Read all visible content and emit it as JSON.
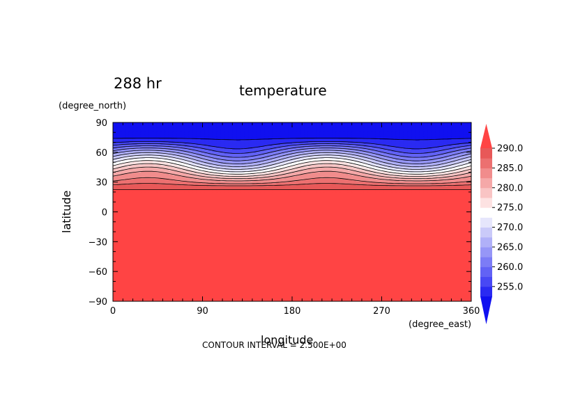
{
  "chart_data": {
    "type": "contour",
    "title": "temperature",
    "time_label": "288 hr",
    "xlabel": "longitude",
    "ylabel": "latitude",
    "x_unit": "(degree_east)",
    "y_unit": "(degree_north)",
    "xlim": [
      0,
      360
    ],
    "ylim": [
      -90,
      90
    ],
    "x_ticks": [
      "0",
      "90",
      "180",
      "270",
      "360"
    ],
    "y_ticks": [
      "90",
      "60",
      "30",
      "0",
      "−30",
      "−60",
      "−90"
    ],
    "x_tick_values": [
      0,
      90,
      180,
      270,
      360
    ],
    "y_tick_values": [
      90,
      60,
      30,
      0,
      -30,
      -60,
      -90
    ],
    "contour_interval_text": "CONTOUR INTERVAL = 2.500E+00",
    "colorbar": {
      "labels": [
        "290.0",
        "285.0",
        "280.0",
        "275.0",
        "270.0",
        "265.0",
        "260.0",
        "255.0"
      ],
      "label_values": [
        290,
        285,
        280,
        275,
        270,
        265,
        260,
        255
      ],
      "levels": [
        252.5,
        255,
        257.5,
        260,
        262.5,
        265,
        267.5,
        270,
        272.5,
        275,
        277.5,
        280,
        282.5,
        285,
        287.5,
        290
      ],
      "colors": [
        "#1010f0",
        "#2a2af2",
        "#4848f4",
        "#6262f5",
        "#7c7cf6",
        "#9696f7",
        "#b0b0f8",
        "#cacaf9",
        "#e6e6fc",
        "#ffffff",
        "#fde2e2",
        "#f9c4c4",
        "#f5a8a8",
        "#f18c8c",
        "#ec7070",
        "#e85858",
        "#ff4444"
      ]
    },
    "field_profile": {
      "latitude": [
        90,
        75,
        70,
        65,
        60,
        55,
        50,
        45,
        40,
        35,
        30,
        25,
        20,
        0,
        -90
      ],
      "temperature": [
        251,
        252,
        254,
        258,
        262,
        266,
        270,
        274,
        278,
        282,
        285,
        289,
        291,
        292,
        292
      ]
    },
    "wave": {
      "amplitude_deg": 8,
      "wavenumber": 2,
      "phase_deg": 20,
      "active_lat_range": [
        25,
        75
      ]
    }
  }
}
